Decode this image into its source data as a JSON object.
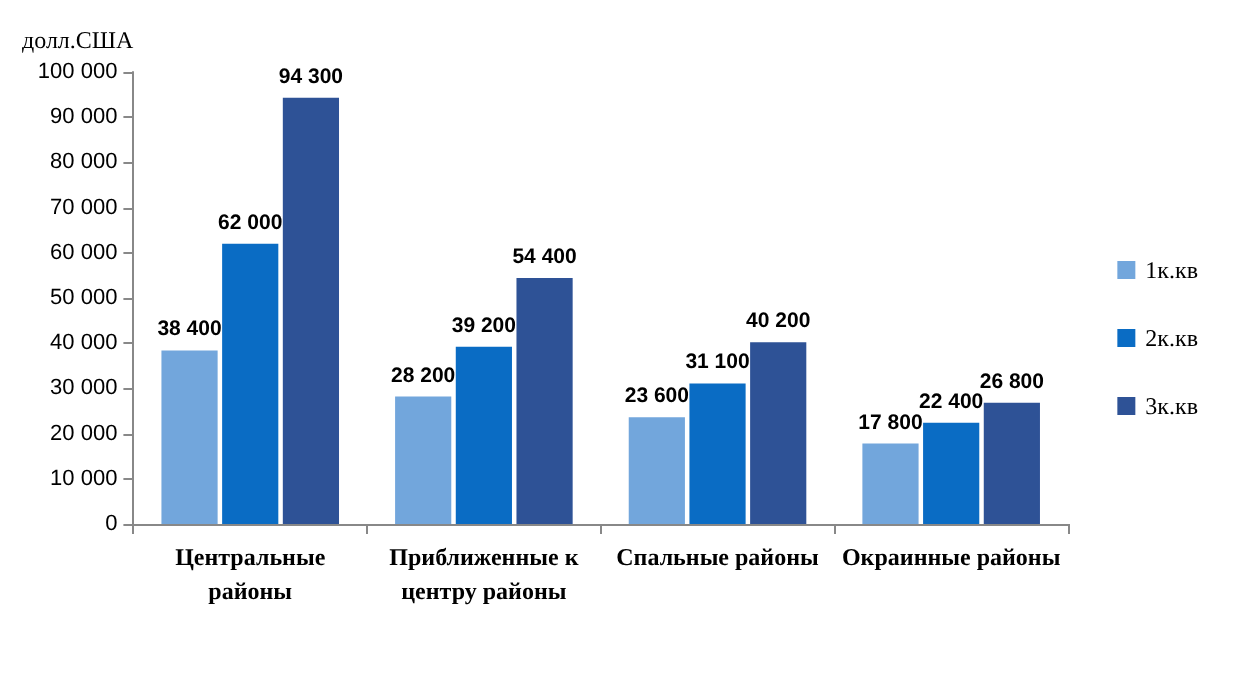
{
  "chart_data": {
    "type": "bar",
    "ylabel": "долл.США",
    "categories": [
      "Центральные\nрайоны",
      "Приближенные к\nцентру районы",
      "Спальные районы",
      "Окраинные районы"
    ],
    "series": [
      {
        "name": "1к.кв",
        "color": "#72a6dc",
        "values": [
          38400,
          28200,
          23600,
          17800
        ],
        "value_labels": [
          "38 400",
          "28 200",
          "23 600",
          "17 800"
        ]
      },
      {
        "name": "2к.кв",
        "color": "#0a6cc4",
        "values": [
          62000,
          39200,
          31100,
          22400
        ],
        "value_labels": [
          "62 000",
          "39 200",
          "31 100",
          "22 400"
        ]
      },
      {
        "name": "3к.кв",
        "color": "#2e5296",
        "values": [
          94300,
          54400,
          40200,
          26800
        ],
        "value_labels": [
          "94 300",
          "54 400",
          "40 200",
          "26 800"
        ]
      }
    ],
    "ylim": [
      0,
      100000
    ],
    "yticks": [
      {
        "value": 0,
        "label": "0"
      },
      {
        "value": 10000,
        "label": "10 000"
      },
      {
        "value": 20000,
        "label": "20 000"
      },
      {
        "value": 30000,
        "label": "30 000"
      },
      {
        "value": 40000,
        "label": "40 000"
      },
      {
        "value": 50000,
        "label": "50 000"
      },
      {
        "value": 60000,
        "label": "60 000"
      },
      {
        "value": 70000,
        "label": "70 000"
      },
      {
        "value": 80000,
        "label": "80 000"
      },
      {
        "value": 90000,
        "label": "90 000"
      },
      {
        "value": 100000,
        "label": "100 000"
      }
    ],
    "grid": false,
    "legend": "right"
  }
}
